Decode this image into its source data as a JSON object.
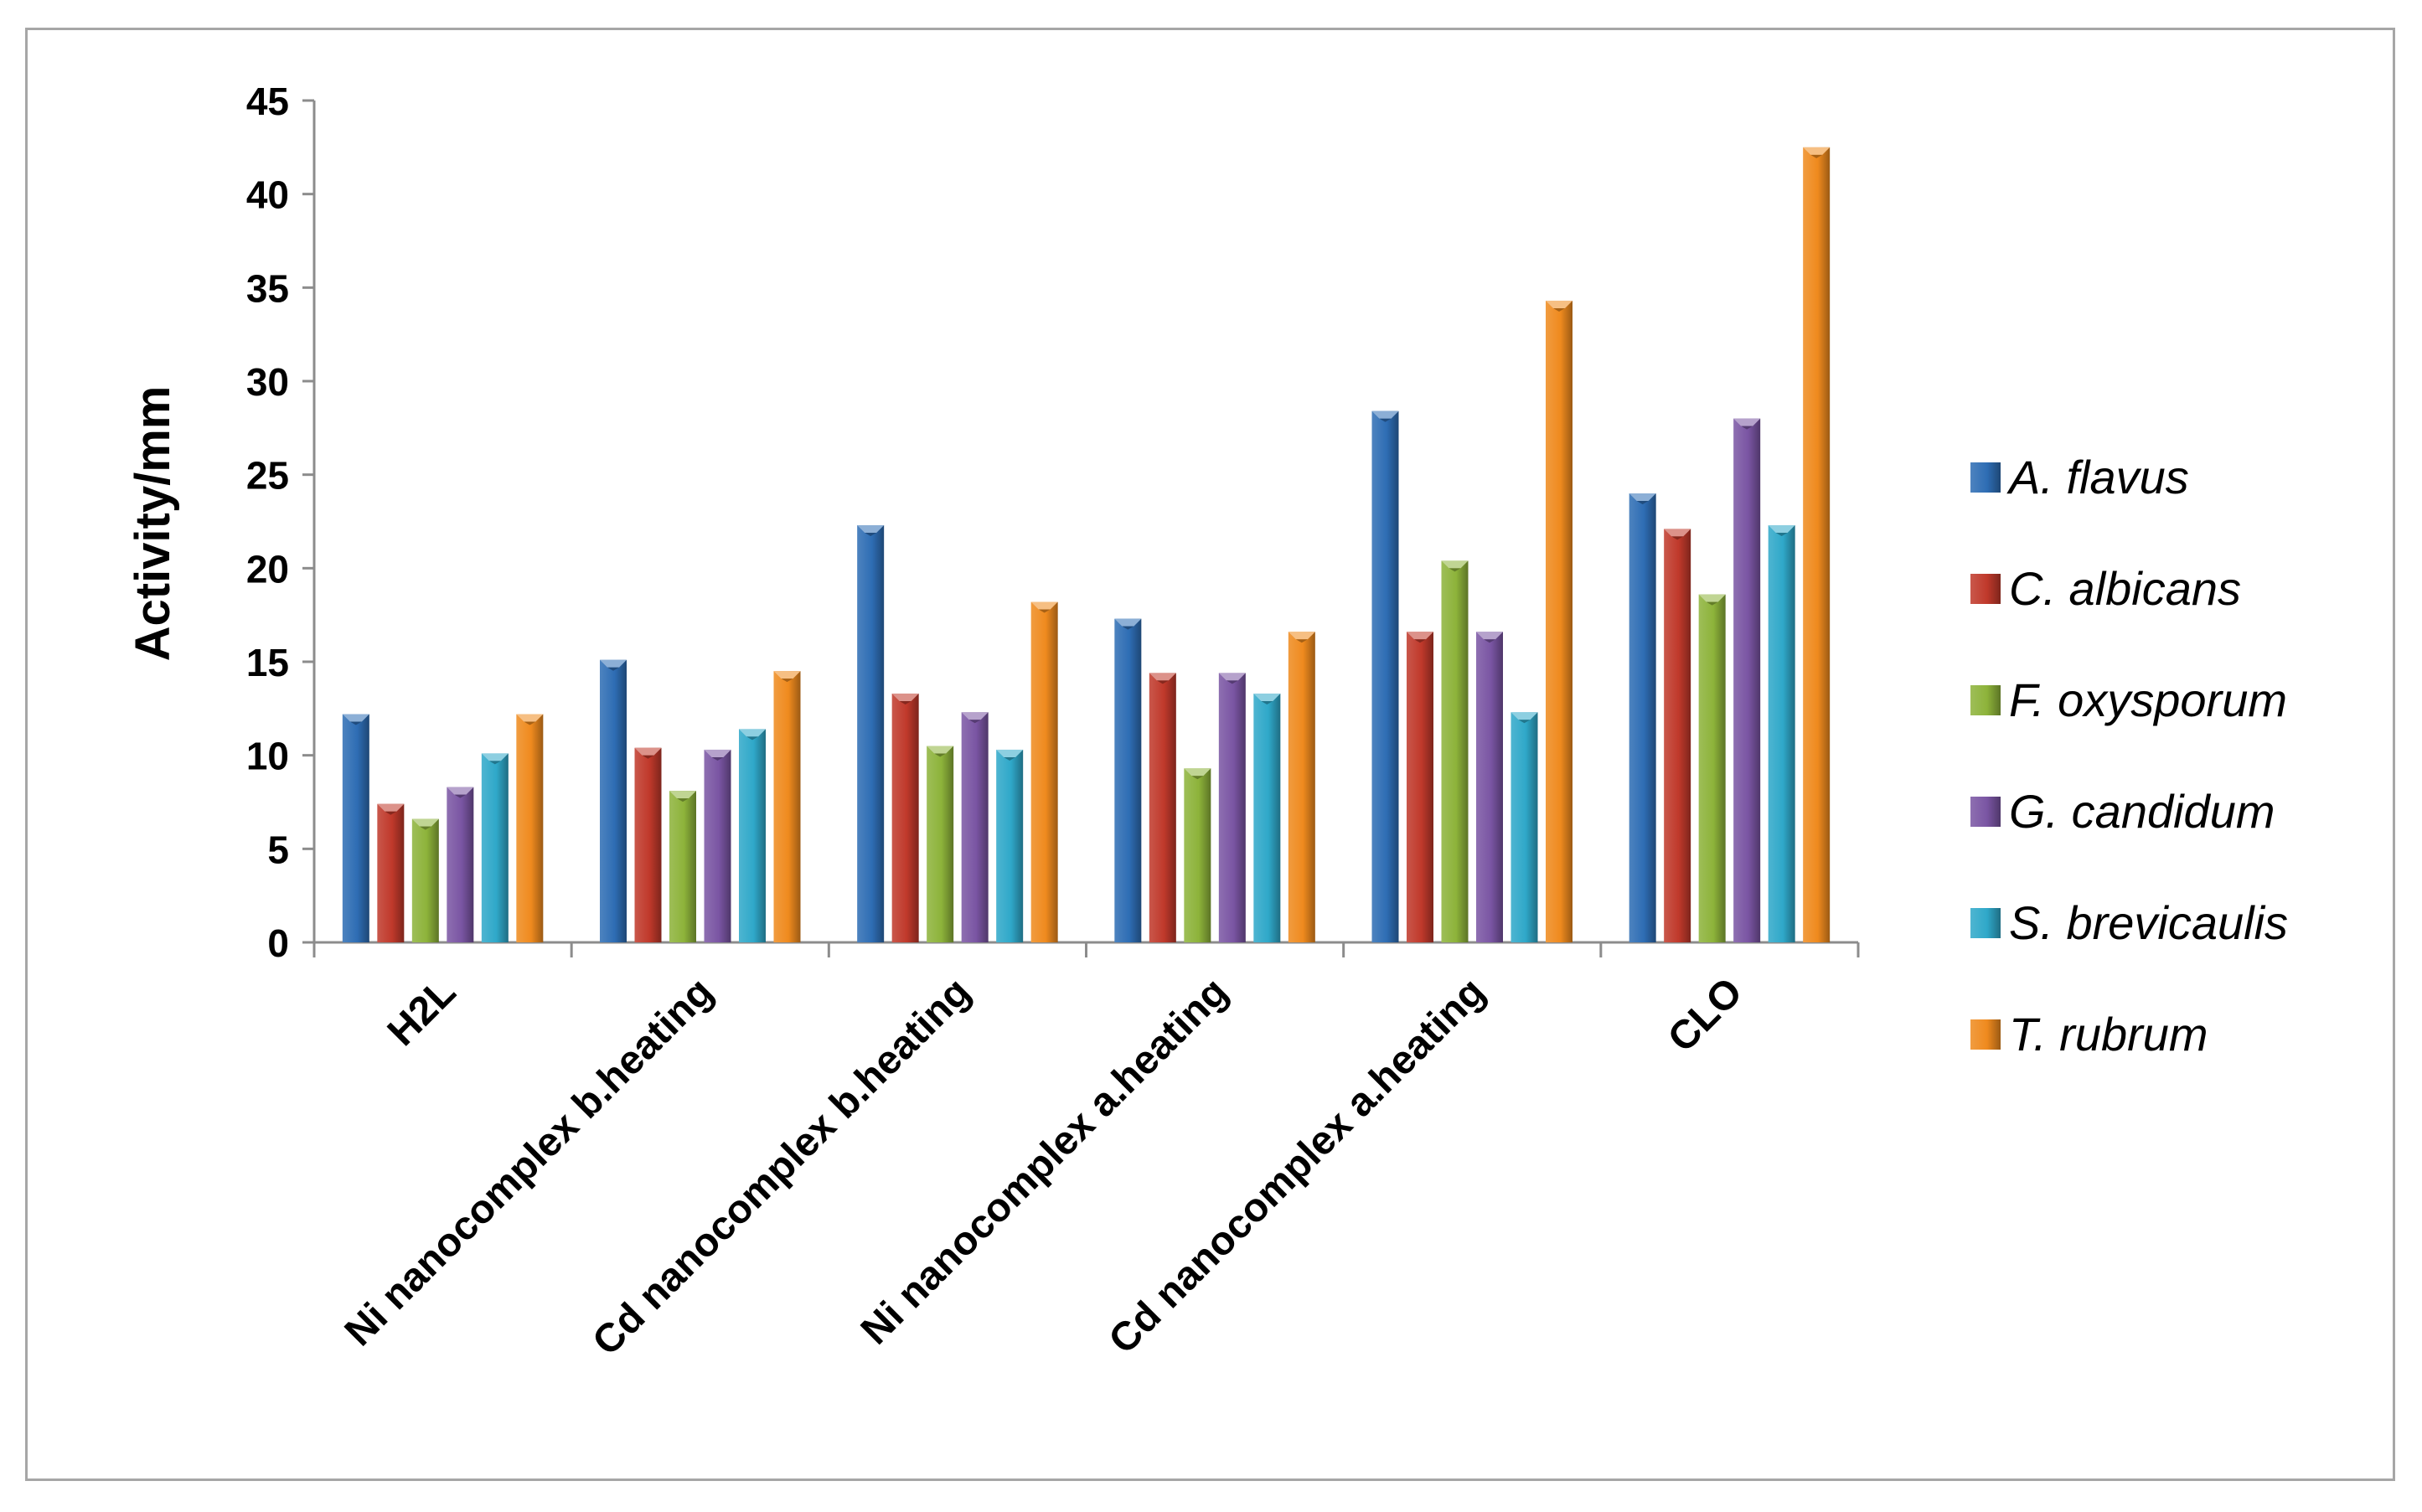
{
  "chart_data": {
    "type": "bar",
    "title": "",
    "xlabel": "",
    "ylabel": "Activity/mm",
    "ylim": [
      0,
      45
    ],
    "yticks": [
      0,
      5,
      10,
      15,
      20,
      25,
      30,
      35,
      40,
      45
    ],
    "grid": false,
    "legend_position": "right",
    "categories": [
      "H2L",
      "Ni nanocomplex b.heating",
      "Cd nanocomplex b.heating",
      "Ni nanocomplex a.heating",
      "Cd nanocomplex a.heating",
      "CLO"
    ],
    "series": [
      {
        "name": "A. flavus",
        "color": "#2e6db4",
        "values": [
          12.2,
          15.1,
          22.3,
          17.3,
          28.4,
          24.0
        ]
      },
      {
        "name": "C. albicans",
        "color": "#c0392b",
        "values": [
          7.4,
          10.4,
          13.3,
          14.4,
          16.6,
          22.1
        ]
      },
      {
        "name": "F. oxysporum",
        "color": "#8db33a",
        "values": [
          6.6,
          8.1,
          10.5,
          9.3,
          20.4,
          18.6
        ]
      },
      {
        "name": "G. candidum",
        "color": "#7a55a3",
        "values": [
          8.3,
          10.3,
          12.3,
          14.4,
          16.6,
          28.0
        ]
      },
      {
        "name": "S. brevicaulis",
        "color": "#2fa8c9",
        "values": [
          10.1,
          11.4,
          10.3,
          13.3,
          12.3,
          22.3
        ]
      },
      {
        "name": "T. rubrum",
        "color": "#ef8a1e",
        "values": [
          12.2,
          14.5,
          18.2,
          16.6,
          34.3,
          42.5
        ]
      }
    ]
  }
}
